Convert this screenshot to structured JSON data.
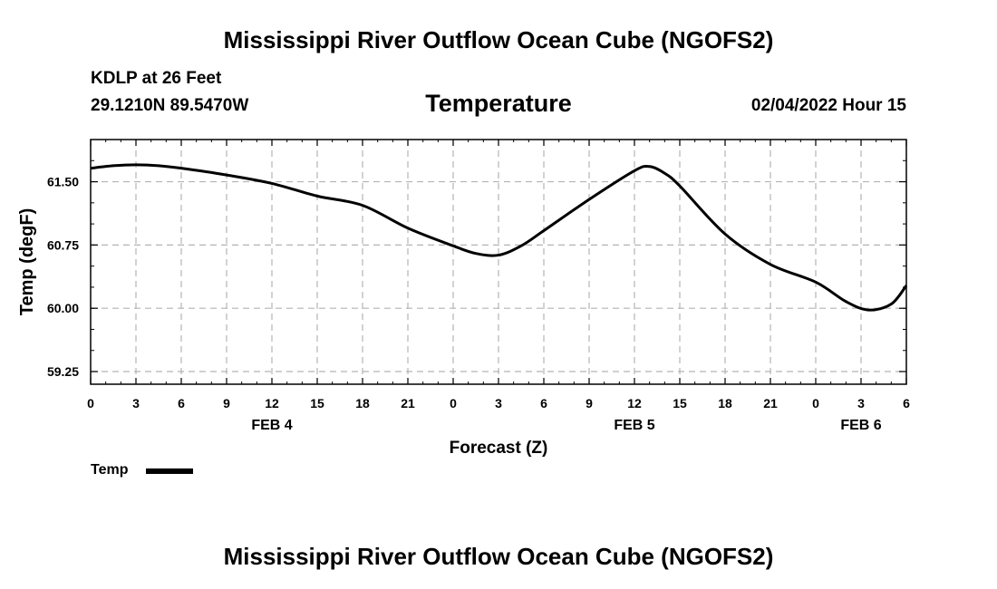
{
  "header": {
    "title_top": "Mississippi River Outflow Ocean Cube (NGOFS2)",
    "station": "KDLP at 26 Feet",
    "coords": "29.1210N  89.5470W",
    "variable": "Temperature",
    "timestamp": "02/04/2022 Hour 15",
    "title_bottom": "Mississippi River Outflow Ocean Cube (NGOFS2)"
  },
  "legend": {
    "label": "Temp"
  },
  "chart_data": {
    "type": "line",
    "title": "Temperature",
    "xlabel": "Forecast (Z)",
    "ylabel": "Temp (degF)",
    "x_unit": "hours from FEB 4 00Z",
    "xlim": [
      0,
      54
    ],
    "ylim": [
      59.1,
      62.0
    ],
    "yticks": [
      59.25,
      60.0,
      60.75,
      61.5
    ],
    "ytick_labels": [
      "59.25",
      "60.00",
      "60.75",
      "61.50"
    ],
    "xticks": [
      0,
      3,
      6,
      9,
      12,
      15,
      18,
      21,
      24,
      27,
      30,
      33,
      36,
      39,
      42,
      45,
      48,
      51,
      54
    ],
    "xtick_labels": [
      "0",
      "3",
      "6",
      "9",
      "12",
      "15",
      "18",
      "21",
      "0",
      "3",
      "6",
      "9",
      "12",
      "15",
      "18",
      "21",
      "0",
      "3",
      "6"
    ],
    "date_labels": [
      {
        "x": 12,
        "label": "FEB 4"
      },
      {
        "x": 36,
        "label": "FEB 5"
      },
      {
        "x": 51,
        "label": "FEB 6"
      }
    ],
    "grid": true,
    "series": [
      {
        "name": "Temp",
        "color": "#000000",
        "x": [
          0,
          1.5,
          3,
          4.5,
          6,
          9,
          12,
          15,
          18,
          21,
          24,
          25.5,
          27,
          28.5,
          30,
          33,
          36,
          37,
          38,
          39,
          42,
          45,
          48,
          50,
          51.5,
          53,
          54
        ],
        "y": [
          61.66,
          61.69,
          61.7,
          61.69,
          61.66,
          61.58,
          61.48,
          61.33,
          61.22,
          60.95,
          60.74,
          60.65,
          60.63,
          60.74,
          60.92,
          61.29,
          61.63,
          61.68,
          61.6,
          61.45,
          60.88,
          60.52,
          60.31,
          60.08,
          59.98,
          60.05,
          60.27
        ]
      }
    ]
  }
}
